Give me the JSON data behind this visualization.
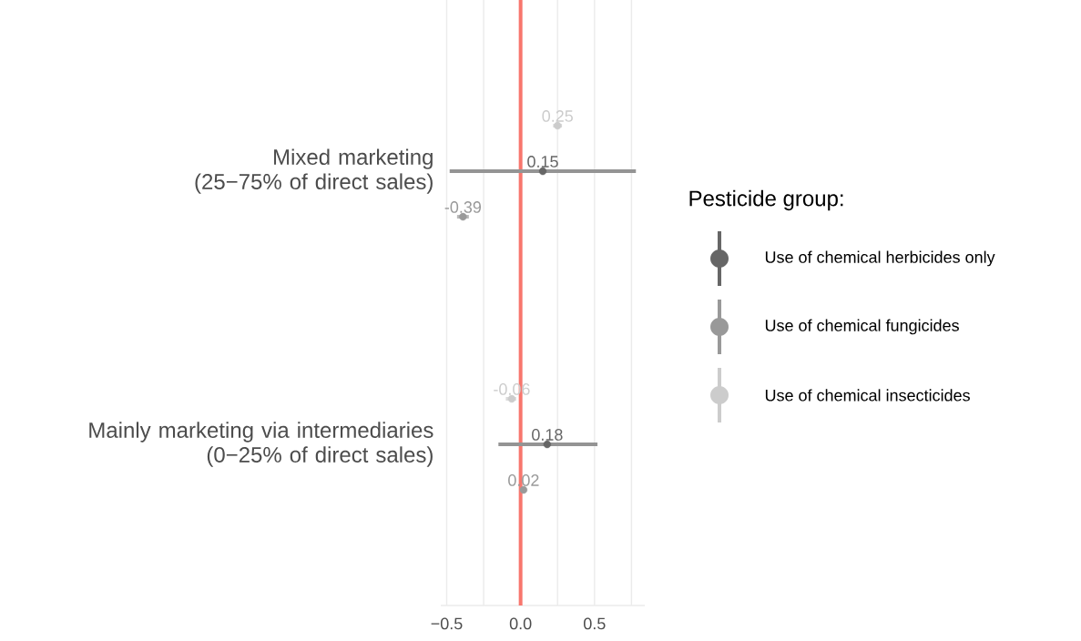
{
  "chart_data": {
    "type": "scatter",
    "orientation": "horizontal",
    "categories": [
      "Mixed marketing\n(25−75% of direct sales)",
      "Mainly marketing via intermediaries\n(0−25% of direct sales)"
    ],
    "legend_title": "Pesticide group:",
    "series": [
      {
        "name": "Use of chemical herbicides only",
        "color": "#666666",
        "values": [
          0.15,
          0.18
        ],
        "errors": [
          [
            -0.48,
            0.78
          ],
          [
            -0.15,
            0.52
          ]
        ]
      },
      {
        "name": "Use of chemical fungicides",
        "color": "#999999",
        "values": [
          -0.39,
          0.02
        ],
        "errors": [
          [
            -0.43,
            -0.35
          ],
          [
            0.0,
            0.04
          ]
        ]
      },
      {
        "name": "Use of chemical insecticides",
        "color": "#cccccc",
        "values": [
          0.25,
          -0.06
        ],
        "errors": [
          [
            0.22,
            0.28
          ],
          [
            -0.1,
            -0.03
          ]
        ]
      }
    ],
    "xlim": [
      -0.54,
      0.84
    ],
    "xticks": [
      {
        "value": -0.5,
        "label": "−0.5"
      },
      {
        "value": -0.25,
        "label": null
      },
      {
        "value": 0,
        "label": "0.0"
      },
      {
        "value": 0.25,
        "label": null
      },
      {
        "value": 0.5,
        "label": "0.5"
      },
      {
        "value": 0.75,
        "label": null
      }
    ],
    "ref_lines": [
      {
        "axis": "x",
        "value": 0,
        "color": "#f8766d"
      }
    ],
    "grid": "x",
    "legend": "right",
    "data_labels": true,
    "marker": "circle"
  }
}
